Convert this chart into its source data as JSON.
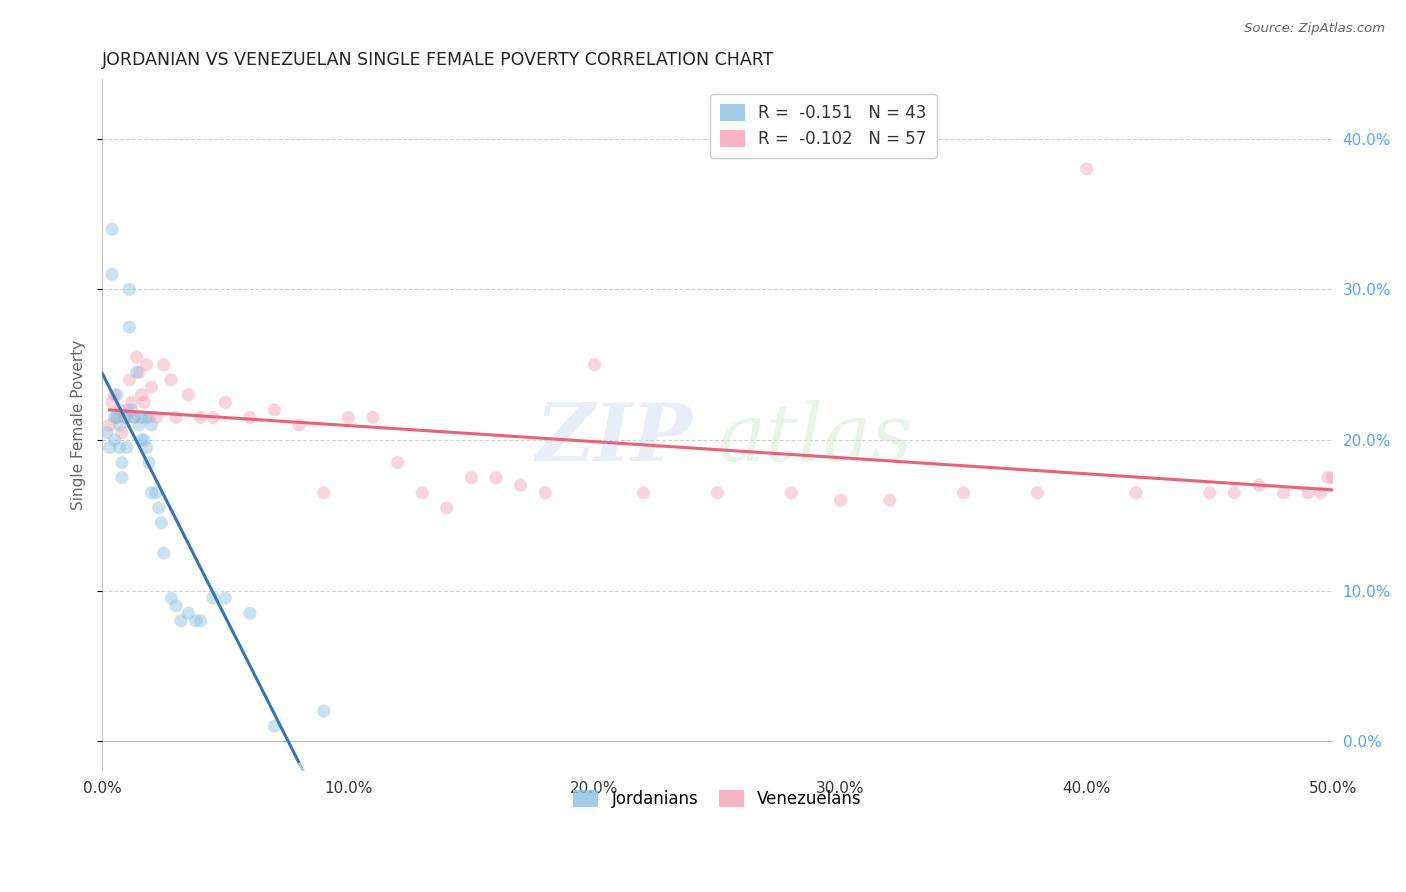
{
  "title": "JORDANIAN VS VENEZUELAN SINGLE FEMALE POVERTY CORRELATION CHART",
  "source": "Source: ZipAtlas.com",
  "ylabel_label": "Single Female Poverty",
  "xlim": [
    0.0,
    0.5
  ],
  "ylim": [
    -0.02,
    0.44
  ],
  "watermark_zip": "ZIP",
  "watermark_atlas": "atlas",
  "legend_entries": [
    {
      "label": "R =  -0.151   N = 43",
      "color": "#8bbfdf"
    },
    {
      "label": "R =  -0.102   N = 57",
      "color": "#f4a0b5"
    }
  ],
  "legend_bottom": [
    {
      "label": "Jordanians",
      "color": "#8bbfdf"
    },
    {
      "label": "Venezuelans",
      "color": "#f4a0b5"
    }
  ],
  "jordanian_x": [
    0.002,
    0.003,
    0.004,
    0.004,
    0.005,
    0.005,
    0.006,
    0.006,
    0.007,
    0.007,
    0.008,
    0.008,
    0.01,
    0.01,
    0.011,
    0.011,
    0.012,
    0.013,
    0.014,
    0.015,
    0.016,
    0.016,
    0.017,
    0.018,
    0.018,
    0.019,
    0.02,
    0.02,
    0.022,
    0.023,
    0.024,
    0.025,
    0.028,
    0.03,
    0.032,
    0.035,
    0.038,
    0.04,
    0.045,
    0.05,
    0.06,
    0.07,
    0.09
  ],
  "jordanian_y": [
    0.205,
    0.195,
    0.34,
    0.31,
    0.215,
    0.2,
    0.23,
    0.215,
    0.21,
    0.195,
    0.185,
    0.175,
    0.215,
    0.195,
    0.3,
    0.275,
    0.22,
    0.215,
    0.245,
    0.21,
    0.215,
    0.2,
    0.2,
    0.215,
    0.195,
    0.185,
    0.21,
    0.165,
    0.165,
    0.155,
    0.145,
    0.125,
    0.095,
    0.09,
    0.08,
    0.085,
    0.08,
    0.08,
    0.095,
    0.095,
    0.085,
    0.01,
    0.02
  ],
  "venezuelan_x": [
    0.003,
    0.004,
    0.005,
    0.006,
    0.007,
    0.008,
    0.009,
    0.01,
    0.011,
    0.012,
    0.013,
    0.014,
    0.015,
    0.016,
    0.017,
    0.018,
    0.019,
    0.02,
    0.022,
    0.025,
    0.028,
    0.03,
    0.035,
    0.04,
    0.045,
    0.05,
    0.06,
    0.07,
    0.08,
    0.09,
    0.1,
    0.11,
    0.12,
    0.13,
    0.14,
    0.15,
    0.16,
    0.17,
    0.18,
    0.2,
    0.22,
    0.25,
    0.28,
    0.3,
    0.32,
    0.35,
    0.38,
    0.4,
    0.42,
    0.45,
    0.46,
    0.47,
    0.48,
    0.49,
    0.495,
    0.498,
    0.5
  ],
  "venezuelan_y": [
    0.21,
    0.225,
    0.23,
    0.215,
    0.22,
    0.205,
    0.215,
    0.22,
    0.24,
    0.225,
    0.215,
    0.255,
    0.245,
    0.23,
    0.225,
    0.25,
    0.215,
    0.235,
    0.215,
    0.25,
    0.24,
    0.215,
    0.23,
    0.215,
    0.215,
    0.225,
    0.215,
    0.22,
    0.21,
    0.165,
    0.215,
    0.215,
    0.185,
    0.165,
    0.155,
    0.175,
    0.175,
    0.17,
    0.165,
    0.25,
    0.165,
    0.165,
    0.165,
    0.16,
    0.16,
    0.165,
    0.165,
    0.38,
    0.165,
    0.165,
    0.165,
    0.17,
    0.165,
    0.165,
    0.165,
    0.175,
    0.175
  ],
  "jordan_color": "#8bbfdf",
  "venezu_color": "#f4a0b5",
  "jordan_line_color": "#3575b5",
  "venezu_line_color": "#e8637a",
  "jordan_dash_color": "#a8cce8",
  "bg_color": "#ffffff",
  "grid_color": "#d0d0d0",
  "title_color": "#222222",
  "right_axis_color": "#4da6ff",
  "marker_size": 90,
  "marker_alpha": 0.45,
  "line_width": 2.2
}
